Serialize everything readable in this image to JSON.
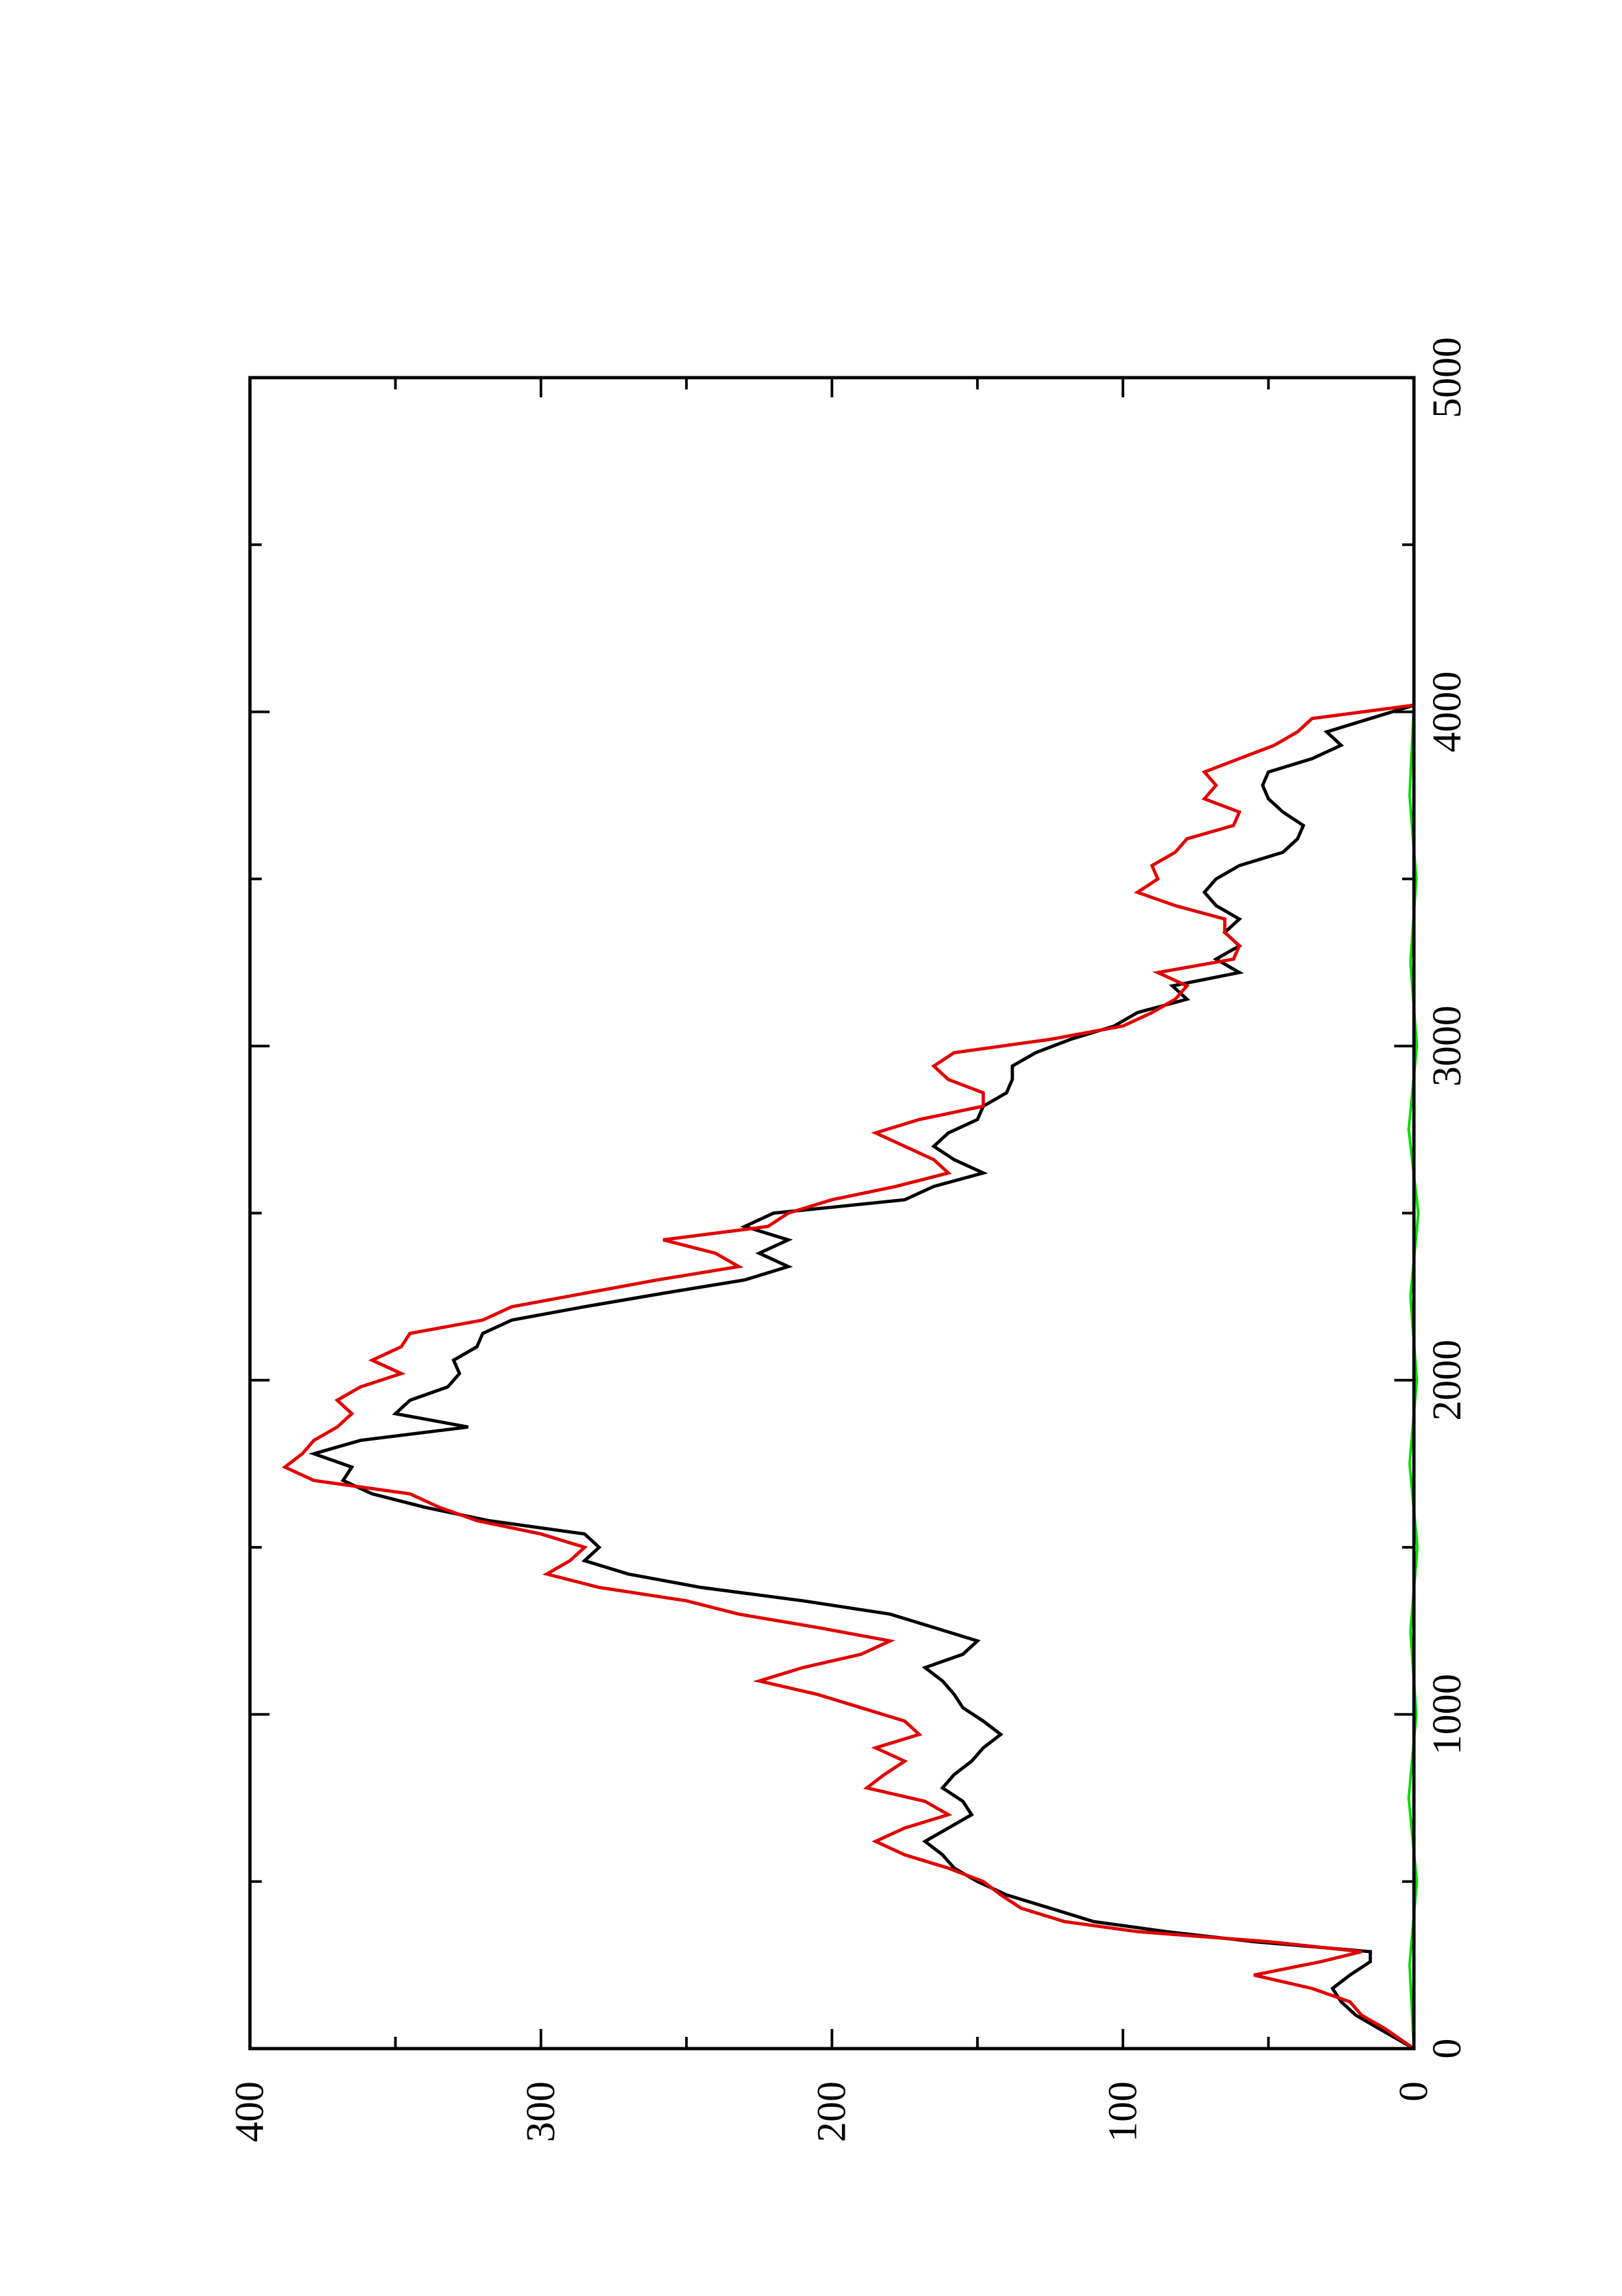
{
  "chart_data": {
    "type": "line",
    "orientation": "rotated-90-ccw",
    "title": "",
    "xlabel": "",
    "ylabel": "",
    "xlim": [
      0,
      5000
    ],
    "ylim": [
      0,
      400
    ],
    "x_ticks": [
      0,
      1000,
      2000,
      3000,
      4000,
      5000
    ],
    "x_tick_labels": [
      "0",
      "1000",
      "2000",
      "3000",
      "4000",
      "5000"
    ],
    "x_minor_ticks": [
      500,
      1500,
      2500,
      3500,
      4500
    ],
    "y_ticks": [
      0,
      100,
      200,
      300,
      400
    ],
    "y_tick_labels": [
      "0",
      "100",
      "200",
      "300",
      "400"
    ],
    "y_minor_ticks": [
      50,
      150,
      250,
      350
    ],
    "grid": false,
    "legend": "none",
    "series": [
      {
        "color": "#000000",
        "x": [
          0,
          60,
          100,
          140,
          180,
          220,
          260,
          290,
          320,
          350,
          380,
          420,
          460,
          500,
          540,
          580,
          620,
          660,
          700,
          740,
          780,
          820,
          860,
          900,
          940,
          980,
          1020,
          1060,
          1100,
          1140,
          1180,
          1220,
          1260,
          1300,
          1340,
          1380,
          1420,
          1460,
          1500,
          1540,
          1580,
          1620,
          1660,
          1700,
          1740,
          1780,
          1820,
          1860,
          1900,
          1940,
          1980,
          2020,
          2060,
          2100,
          2140,
          2180,
          2220,
          2260,
          2300,
          2340,
          2380,
          2420,
          2460,
          2500,
          2540,
          2580,
          2620,
          2660,
          2700,
          2740,
          2780,
          2820,
          2860,
          2900,
          2940,
          2980,
          3020,
          3060,
          3100,
          3140,
          3180,
          3220,
          3260,
          3300,
          3340,
          3380,
          3420,
          3460,
          3500,
          3540,
          3580,
          3620,
          3660,
          3700,
          3740,
          3780,
          3820,
          3860,
          3900,
          3940,
          3980,
          4020
        ],
        "y": [
          0,
          12,
          20,
          25,
          28,
          22,
          15,
          15,
          55,
          85,
          110,
          125,
          140,
          150,
          158,
          162,
          168,
          160,
          152,
          155,
          162,
          158,
          152,
          148,
          142,
          148,
          155,
          158,
          162,
          168,
          155,
          150,
          165,
          180,
          210,
          245,
          270,
          285,
          280,
          285,
          318,
          340,
          358,
          368,
          365,
          378,
          362,
          325,
          350,
          345,
          332,
          328,
          330,
          322,
          320,
          310,
          285,
          258,
          230,
          215,
          225,
          215,
          230,
          220,
          175,
          165,
          148,
          158,
          165,
          160,
          150,
          148,
          140,
          138,
          138,
          130,
          118,
          103,
          95,
          78,
          83,
          60,
          68,
          60,
          65,
          60,
          68,
          72,
          68,
          60,
          45,
          40,
          38,
          45,
          50,
          52,
          50,
          35,
          25,
          30,
          15,
          0
        ],
        "line_width": 5
      },
      {
        "color": "#e00000",
        "x": [
          0,
          60,
          100,
          140,
          180,
          220,
          260,
          290,
          320,
          350,
          380,
          420,
          460,
          500,
          540,
          580,
          620,
          660,
          700,
          740,
          780,
          820,
          860,
          900,
          940,
          980,
          1020,
          1060,
          1100,
          1140,
          1180,
          1220,
          1260,
          1300,
          1340,
          1380,
          1420,
          1460,
          1500,
          1540,
          1580,
          1620,
          1660,
          1700,
          1740,
          1780,
          1820,
          1860,
          1900,
          1940,
          1980,
          2020,
          2060,
          2100,
          2140,
          2180,
          2220,
          2260,
          2300,
          2340,
          2380,
          2420,
          2460,
          2500,
          2540,
          2580,
          2620,
          2660,
          2700,
          2740,
          2780,
          2820,
          2860,
          2900,
          2940,
          2980,
          3020,
          3060,
          3100,
          3140,
          3180,
          3220,
          3260,
          3300,
          3340,
          3380,
          3420,
          3460,
          3500,
          3540,
          3580,
          3620,
          3660,
          3700,
          3740,
          3780,
          3820,
          3860,
          3900,
          3940,
          3980,
          4020
        ],
        "y": [
          0,
          10,
          18,
          22,
          35,
          55,
          32,
          18,
          50,
          95,
          120,
          135,
          142,
          148,
          160,
          175,
          185,
          175,
          160,
          168,
          188,
          182,
          175,
          185,
          170,
          175,
          190,
          205,
          225,
          210,
          190,
          180,
          205,
          232,
          250,
          280,
          298,
          290,
          285,
          300,
          322,
          335,
          345,
          378,
          388,
          382,
          378,
          370,
          365,
          370,
          362,
          348,
          358,
          348,
          345,
          320,
          310,
          285,
          260,
          232,
          240,
          258,
          222,
          215,
          200,
          178,
          160,
          165,
          175,
          185,
          170,
          148,
          148,
          160,
          165,
          158,
          125,
          100,
          90,
          82,
          78,
          88,
          62,
          60,
          65,
          65,
          82,
          95,
          88,
          90,
          82,
          78,
          62,
          60,
          72,
          68,
          72,
          60,
          48,
          40,
          35,
          0
        ],
        "line_width": 5
      },
      {
        "color": "#00dd00",
        "x": [
          0,
          250,
          500,
          750,
          1000,
          1250,
          1500,
          1750,
          2000,
          2250,
          2500,
          2750,
          3000,
          3250,
          3500,
          3750,
          4020
        ],
        "y": [
          0,
          1.5,
          -1,
          1.8,
          -0.8,
          1.2,
          -1.2,
          1.5,
          -1,
          1.2,
          -1.5,
          1.8,
          -1,
          1.2,
          -0.8,
          1.5,
          0
        ],
        "line_width": 4
      }
    ]
  }
}
